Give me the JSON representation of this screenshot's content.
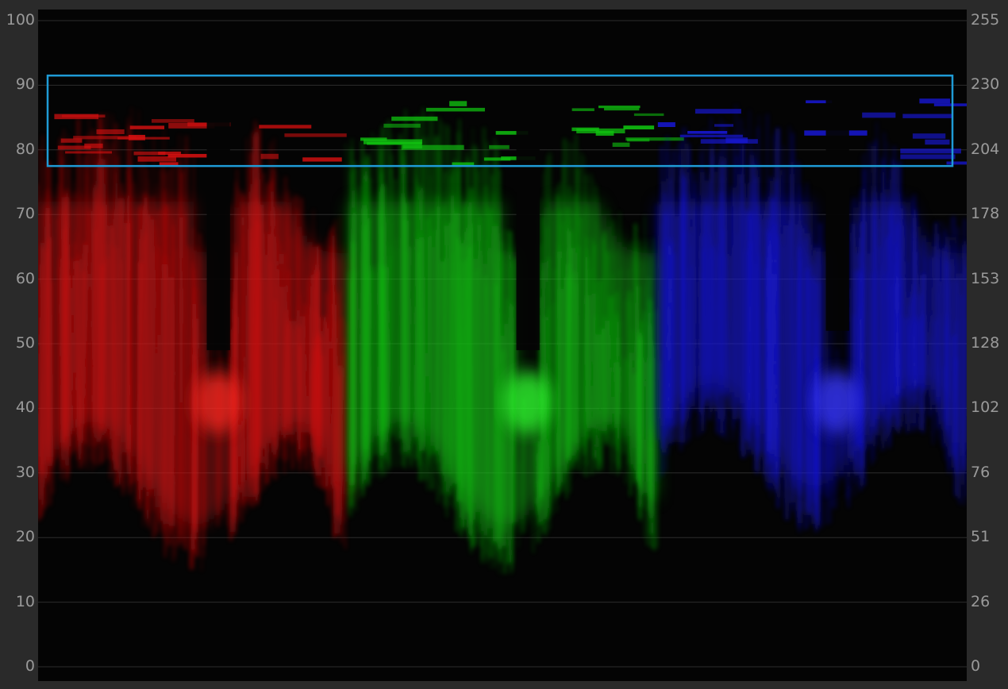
{
  "scope": {
    "type": "rgb-parade-waveform",
    "left_axis": {
      "unit": "IRE",
      "ticks": [
        "100",
        "90",
        "80",
        "70",
        "60",
        "50",
        "40",
        "30",
        "20",
        "10",
        "0"
      ]
    },
    "right_axis": {
      "unit": "8-bit code",
      "ticks": [
        "255",
        "230",
        "204",
        "178",
        "153",
        "128",
        "102",
        "76",
        "51",
        "26",
        "0"
      ]
    },
    "channels": [
      {
        "name": "red",
        "color": "#d01010",
        "core_color": "#ff2a20"
      },
      {
        "name": "green",
        "color": "#10c010",
        "core_color": "#30ff30"
      },
      {
        "name": "blue",
        "color": "#1818d8",
        "core_color": "#3a3aff"
      }
    ],
    "highlight_box": {
      "color": "#1f9bd6",
      "ire_top": 91.5,
      "ire_bottom": 77.5
    },
    "grid": {
      "on": true,
      "color": "#2c2c2c"
    }
  }
}
